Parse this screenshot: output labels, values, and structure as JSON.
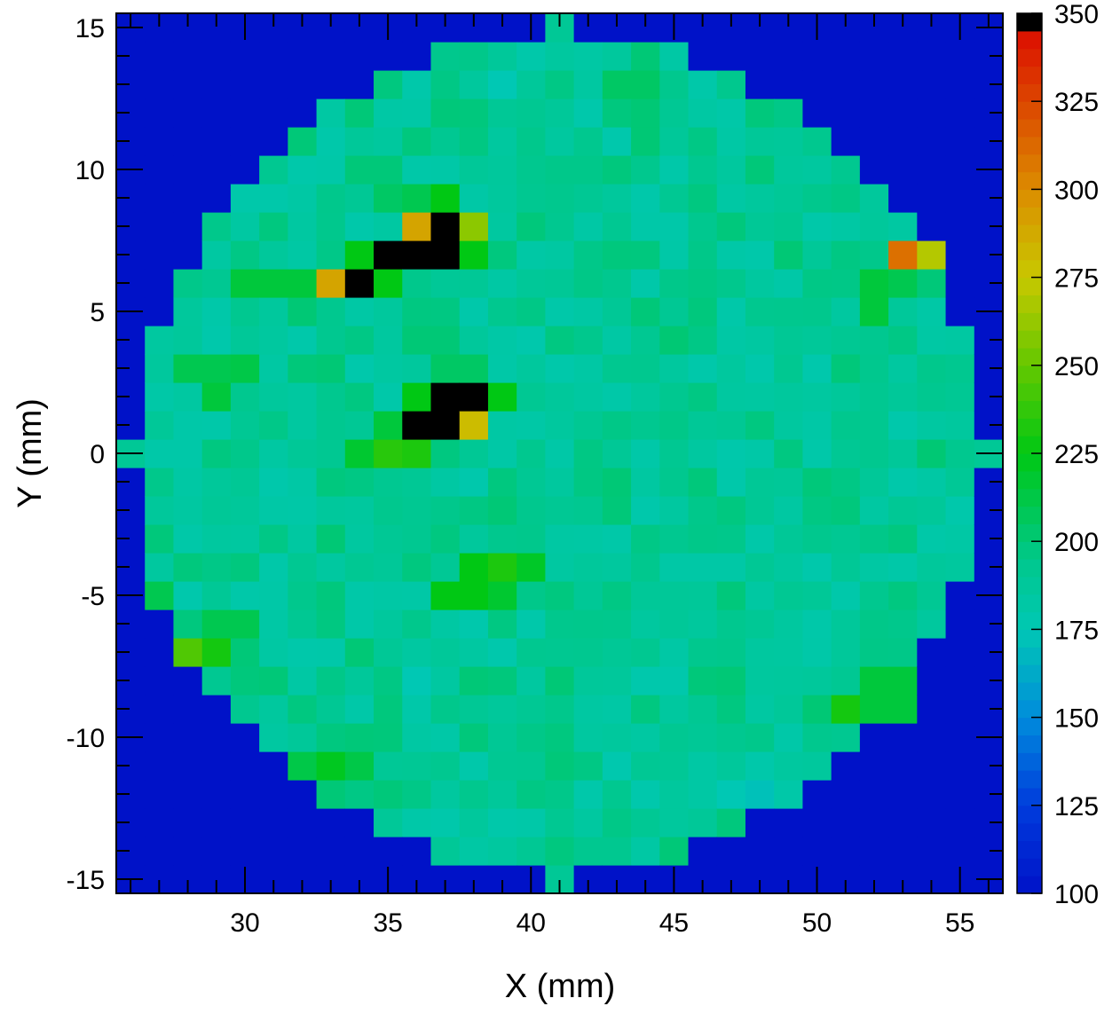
{
  "chart_data": {
    "type": "heatmap",
    "title": "",
    "xlabel": "X (mm)",
    "ylabel": "Y (mm)",
    "xlim": [
      25.5,
      56.5
    ],
    "ylim": [
      -15.5,
      15.5
    ],
    "x_ticks": [
      "30",
      "35",
      "40",
      "45",
      "50",
      "55"
    ],
    "y_ticks": [
      "15",
      "10",
      "5",
      "0",
      "-5",
      "-10",
      "-15"
    ],
    "colorbar_ticks": [
      "350",
      "325",
      "300",
      "275",
      "250",
      "225",
      "200",
      "175",
      "150",
      "125",
      "100"
    ],
    "z_range": [
      100,
      350
    ],
    "grid": false,
    "bins": {
      "x_start": 25.5,
      "y_start": -15.5,
      "bin_size": 1,
      "nx": 31,
      "ny": 31
    },
    "background_value": 100,
    "fill_value": 190,
    "aperture_radius": 14.6,
    "aperture_center": [
      41,
      0
    ],
    "extra_cells": [
      [
        41,
        15,
        190
      ],
      [
        41,
        -15,
        190
      ],
      [
        26,
        0,
        190
      ],
      [
        56,
        0,
        190
      ]
    ],
    "overrides": [
      [
        37,
        8,
        360
      ],
      [
        36,
        7,
        360
      ],
      [
        37,
        7,
        360
      ],
      [
        35,
        7,
        360
      ],
      [
        34,
        6,
        360
      ],
      [
        36,
        8,
        290
      ],
      [
        38,
        8,
        260
      ],
      [
        33,
        6,
        290
      ],
      [
        37,
        9,
        225
      ],
      [
        38,
        7,
        225
      ],
      [
        34,
        7,
        225
      ],
      [
        35,
        6,
        225
      ],
      [
        32,
        6,
        215
      ],
      [
        31,
        6,
        215
      ],
      [
        30,
        6,
        215
      ],
      [
        37,
        2,
        360
      ],
      [
        38,
        2,
        360
      ],
      [
        36,
        1,
        360
      ],
      [
        37,
        1,
        360
      ],
      [
        38,
        1,
        280
      ],
      [
        36,
        2,
        225
      ],
      [
        39,
        2,
        225
      ],
      [
        35,
        1,
        215
      ],
      [
        35,
        0,
        235
      ],
      [
        36,
        0,
        232
      ],
      [
        34,
        0,
        218
      ],
      [
        53,
        7,
        310
      ],
      [
        54,
        7,
        270
      ],
      [
        52,
        6,
        215
      ],
      [
        28,
        -7,
        245
      ],
      [
        29,
        -7,
        230
      ],
      [
        38,
        -4,
        225
      ],
      [
        39,
        -4,
        232
      ],
      [
        40,
        -4,
        220
      ],
      [
        37,
        -5,
        225
      ],
      [
        38,
        -5,
        225
      ],
      [
        39,
        -5,
        218
      ],
      [
        51,
        -9,
        230
      ],
      [
        52,
        -9,
        215
      ],
      [
        53,
        -9,
        215
      ],
      [
        52,
        -8,
        215
      ],
      [
        53,
        -8,
        215
      ],
      [
        33,
        -11,
        222
      ],
      [
        32,
        -11,
        212
      ],
      [
        34,
        -11,
        212
      ],
      [
        37,
        3,
        205
      ],
      [
        38,
        3,
        205
      ],
      [
        36,
        9,
        210
      ],
      [
        35,
        9,
        205
      ],
      [
        29,
        3,
        210
      ],
      [
        28,
        3,
        210
      ],
      [
        30,
        3,
        212
      ],
      [
        29,
        2,
        215
      ],
      [
        52,
        5,
        215
      ],
      [
        53,
        6,
        210
      ],
      [
        27,
        -5,
        210
      ],
      [
        29,
        -6,
        210
      ],
      [
        30,
        -6,
        210
      ],
      [
        40,
        14,
        180
      ],
      [
        39,
        13,
        175
      ],
      [
        43,
        13,
        205
      ],
      [
        44,
        13,
        205
      ],
      [
        48,
        -12,
        172
      ],
      [
        47,
        -12,
        175
      ],
      [
        36,
        -8,
        175
      ],
      [
        43,
        -11,
        178
      ],
      [
        31,
        9,
        180
      ],
      [
        32,
        10,
        180
      ],
      [
        30,
        9,
        180
      ],
      [
        33,
        11,
        180
      ]
    ]
  }
}
